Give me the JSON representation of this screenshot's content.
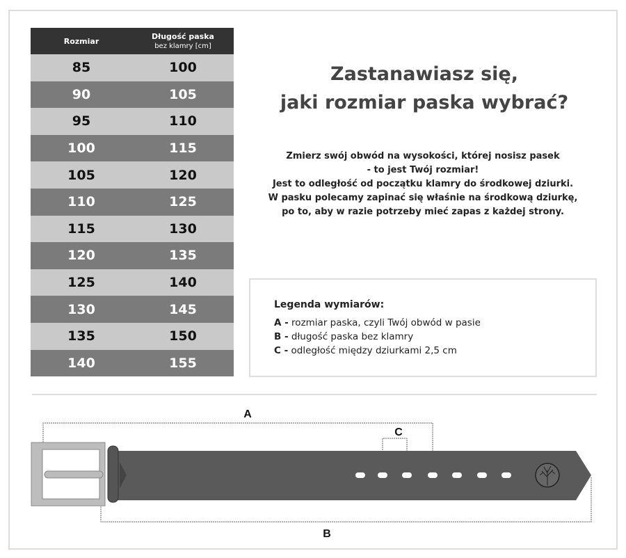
{
  "table": {
    "headers": {
      "size": "Rozmiar",
      "length_line1": "Długość paska",
      "length_line2": "bez klamry [cm]"
    },
    "rows": [
      [
        "85",
        "100"
      ],
      [
        "90",
        "105"
      ],
      [
        "95",
        "110"
      ],
      [
        "100",
        "115"
      ],
      [
        "105",
        "120"
      ],
      [
        "110",
        "125"
      ],
      [
        "115",
        "130"
      ],
      [
        "120",
        "135"
      ],
      [
        "125",
        "140"
      ],
      [
        "130",
        "145"
      ],
      [
        "135",
        "150"
      ],
      [
        "140",
        "155"
      ]
    ]
  },
  "title": {
    "line1": "Zastanawiasz się,",
    "line2": "jaki rozmiar paska wybrać?"
  },
  "paragraph": [
    "Zmierz swój obwód na wysokości, której nosisz pasek",
    "- to jest Twój rozmiar!",
    "Jest to odległość od początku klamry do środkowej dziurki.",
    "W pasku polecamy zapinać się właśnie na środkową dziurkę,",
    "po to, aby w razie potrzeby mieć zapas z każdej strony."
  ],
  "legend": {
    "heading": "Legenda wymiarów:",
    "items": [
      {
        "key": "A -",
        "text": " rozmiar paska, czyli Twój obwód w pasie"
      },
      {
        "key": "B -",
        "text": " długość paska bez klamry"
      },
      {
        "key": "C -",
        "text": " odległość między dziurkami 2,5 cm"
      }
    ]
  },
  "diagram": {
    "label_a": "A",
    "label_b": "B",
    "label_c": "C",
    "belt_color": "#5a5a5a",
    "buckle_color": "#bdbdbd"
  }
}
